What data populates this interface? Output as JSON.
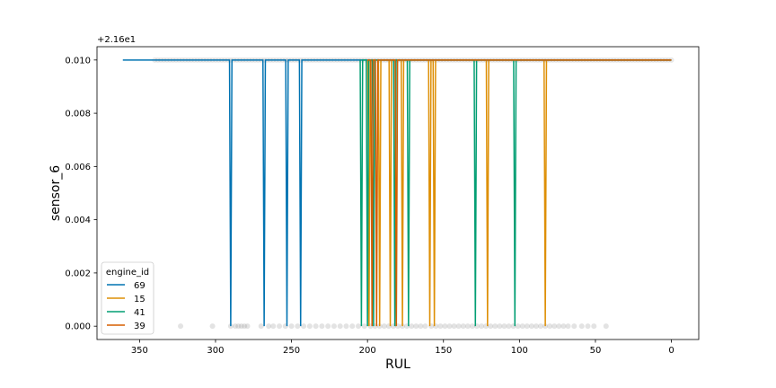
{
  "chart_data": {
    "type": "line",
    "title": "",
    "xlabel": "RUL",
    "ylabel": "sensor_6",
    "offset_text": "+2.16e1",
    "xlim": [
      378,
      -18
    ],
    "ylim": [
      -0.0005,
      0.0105
    ],
    "x_inverted": true,
    "x_ticks": [
      350,
      300,
      250,
      200,
      150,
      100,
      50,
      0
    ],
    "x_tick_labels": [
      "350",
      "300",
      "250",
      "200",
      "150",
      "100",
      "50",
      "0"
    ],
    "y_ticks": [
      0.0,
      0.002,
      0.004,
      0.006,
      0.008,
      0.01
    ],
    "y_tick_labels": [
      "0.000",
      "0.002",
      "0.004",
      "0.006",
      "0.008",
      "0.010"
    ],
    "grid": false,
    "legend": {
      "title": "engine_id",
      "placement": "lower-left",
      "entries": [
        "69",
        "15",
        "41",
        "39"
      ]
    },
    "series": [
      {
        "name": "69",
        "color": "#0173b2",
        "x_range": [
          361,
          0
        ],
        "dips": [
          290,
          268,
          253,
          244
        ]
      },
      {
        "name": "15",
        "color": "#de8f05",
        "x_range": [
          200,
          0
        ],
        "dips": [
          199,
          192,
          185,
          177,
          159,
          156,
          121,
          83
        ]
      },
      {
        "name": "41",
        "color": "#029e73",
        "x_range": [
          205,
          0
        ],
        "dips": [
          204,
          200,
          196,
          182,
          173,
          129,
          103
        ]
      },
      {
        "name": "39",
        "color": "#d55e00",
        "x_range": [
          200,
          0
        ],
        "dips": [
          197,
          194,
          181
        ]
      }
    ],
    "scatter_zero_x": [
      323,
      302,
      290,
      287,
      285,
      283,
      281,
      279,
      270,
      265,
      262,
      258,
      254,
      250,
      246,
      242,
      238,
      234,
      230,
      226,
      222,
      218,
      214,
      210,
      206,
      202,
      198,
      195,
      192,
      189,
      186,
      183,
      180,
      177,
      174,
      171,
      168,
      165,
      162,
      158,
      155,
      152,
      149,
      146,
      143,
      140,
      137,
      134,
      131,
      128,
      125,
      122,
      119,
      116,
      113,
      110,
      107,
      104,
      101,
      98,
      95,
      92,
      89,
      86,
      83,
      80,
      77,
      74,
      71,
      68,
      64,
      59,
      55,
      51,
      43
    ],
    "scatter_top_range": [
      340,
      0
    ],
    "scatter_color": "#808080"
  }
}
